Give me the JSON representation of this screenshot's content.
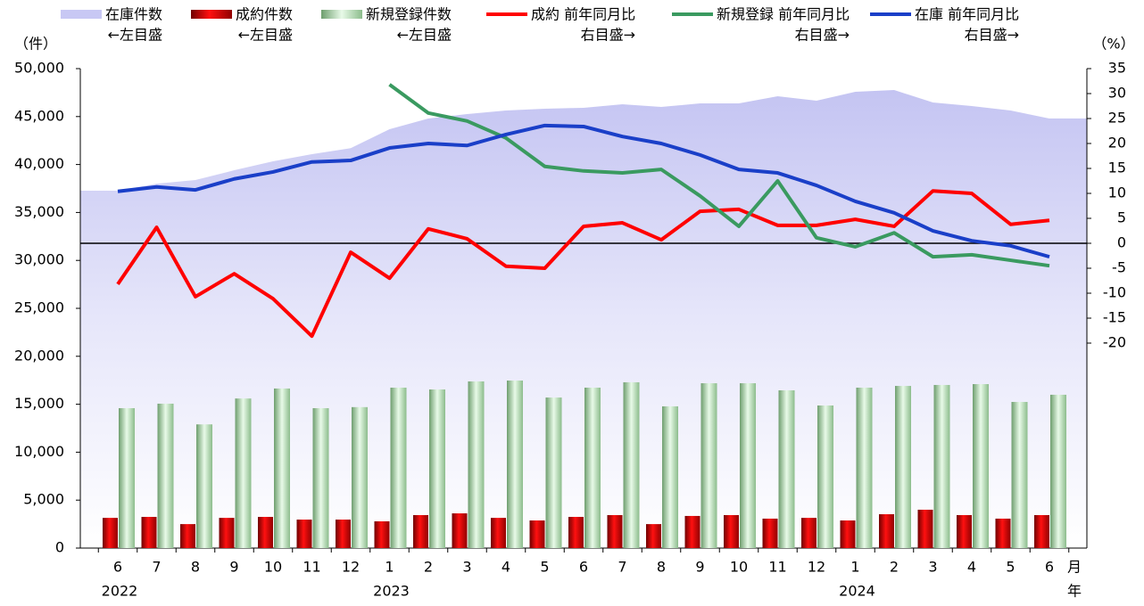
{
  "chart_data": {
    "type": "combo",
    "y_label": "（件）",
    "y2_label": "（%）",
    "x_label": "月",
    "x_label2": "年",
    "categories": [
      "6",
      "7",
      "8",
      "9",
      "10",
      "11",
      "12",
      "1",
      "2",
      "3",
      "4",
      "5",
      "6",
      "7",
      "8",
      "9",
      "10",
      "11",
      "12",
      "1",
      "2",
      "3",
      "4",
      "5",
      "6"
    ],
    "years": [
      "2022",
      null,
      null,
      null,
      null,
      null,
      null,
      "2023",
      null,
      null,
      null,
      null,
      null,
      null,
      null,
      null,
      null,
      null,
      null,
      "2024",
      null,
      null,
      null,
      null,
      null
    ],
    "ylim": [
      0,
      50000
    ],
    "yticks": [
      {
        "value": 0,
        "label": "0"
      },
      {
        "value": 5000,
        "label": "5,000"
      },
      {
        "value": 10000,
        "label": "10,000"
      },
      {
        "value": 15000,
        "label": "15,000"
      },
      {
        "value": 20000,
        "label": "20,000"
      },
      {
        "value": 25000,
        "label": "25,000"
      },
      {
        "value": 30000,
        "label": "30,000"
      },
      {
        "value": 35000,
        "label": "35,000"
      },
      {
        "value": 40000,
        "label": "40,000"
      },
      {
        "value": 45000,
        "label": "45,000"
      },
      {
        "value": 50000,
        "label": "50,000"
      }
    ],
    "y2lim": [
      -61.07,
      35
    ],
    "y2ticks": [
      35,
      30,
      25,
      20,
      15,
      10,
      5,
      0,
      -5,
      -10,
      -15,
      -20
    ],
    "y2_negative_color": "#ff0000",
    "zero_line": true,
    "series": [
      {
        "name": "在庫件数",
        "legend_note": "←左目盛",
        "type": "area",
        "color": "#c8c8f4",
        "values": [
          37270,
          38000,
          38380,
          39400,
          40330,
          41080,
          41700,
          43680,
          44800,
          45260,
          45630,
          45820,
          45910,
          46280,
          46000,
          46380,
          46380,
          47120,
          46650,
          47580,
          47770,
          46470,
          46100,
          45630,
          44800
        ]
      },
      {
        "name": "成約件数",
        "legend_note": "←左目盛",
        "type": "bar",
        "color": "#e00000",
        "values": [
          3150,
          3250,
          2500,
          3150,
          3250,
          2970,
          2970,
          2790,
          3440,
          3620,
          3150,
          2880,
          3250,
          3440,
          2500,
          3350,
          3440,
          3070,
          3150,
          2880,
          3530,
          4000,
          3440,
          3070,
          3440
        ]
      },
      {
        "name": "新規登録件数",
        "legend_note": "←左目盛",
        "type": "bar",
        "color": "#b4e0b4",
        "values": [
          14590,
          15060,
          12900,
          15600,
          16640,
          14590,
          14700,
          16730,
          16540,
          17380,
          17470,
          15700,
          16730,
          17290,
          14780,
          17190,
          17190,
          16450,
          14870,
          16730,
          16910,
          17010,
          17100,
          15240,
          15990
        ]
      },
      {
        "name": "成約 前年同月比",
        "legend_note": "右目盛→",
        "type": "line",
        "axis": "y2",
        "color": "#ff0000",
        "values": [
          -8.2,
          3.2,
          -10.7,
          -6.1,
          -11.1,
          -18.6,
          -1.8,
          -7.0,
          2.9,
          0.9,
          -4.6,
          -5.0,
          3.4,
          4.1,
          0.7,
          6.4,
          6.8,
          3.6,
          3.6,
          4.8,
          3.4,
          10.5,
          10.0,
          3.8,
          4.6
        ]
      },
      {
        "name": "新規登録 前年同月比",
        "legend_note": "右目盛→",
        "type": "line",
        "axis": "y2",
        "color": "#3a9a60",
        "values": [
          null,
          null,
          null,
          null,
          null,
          null,
          null,
          31.8,
          26.1,
          24.5,
          21.1,
          15.4,
          14.5,
          14.1,
          14.8,
          9.5,
          3.4,
          12.5,
          1.1,
          -0.7,
          2.1,
          -2.7,
          -2.3,
          -3.4,
          -4.5
        ]
      },
      {
        "name": "在庫 前年同月比",
        "legend_note": "右目盛→",
        "type": "line",
        "axis": "y2",
        "color": "#1a3fc8",
        "values": [
          10.4,
          11.3,
          10.7,
          12.9,
          14.3,
          16.3,
          16.6,
          19.1,
          20.0,
          19.6,
          21.8,
          23.6,
          23.4,
          21.4,
          20.0,
          17.7,
          14.8,
          14.1,
          11.6,
          8.4,
          6.1,
          2.5,
          0.5,
          -0.5,
          -2.7
        ]
      }
    ]
  }
}
